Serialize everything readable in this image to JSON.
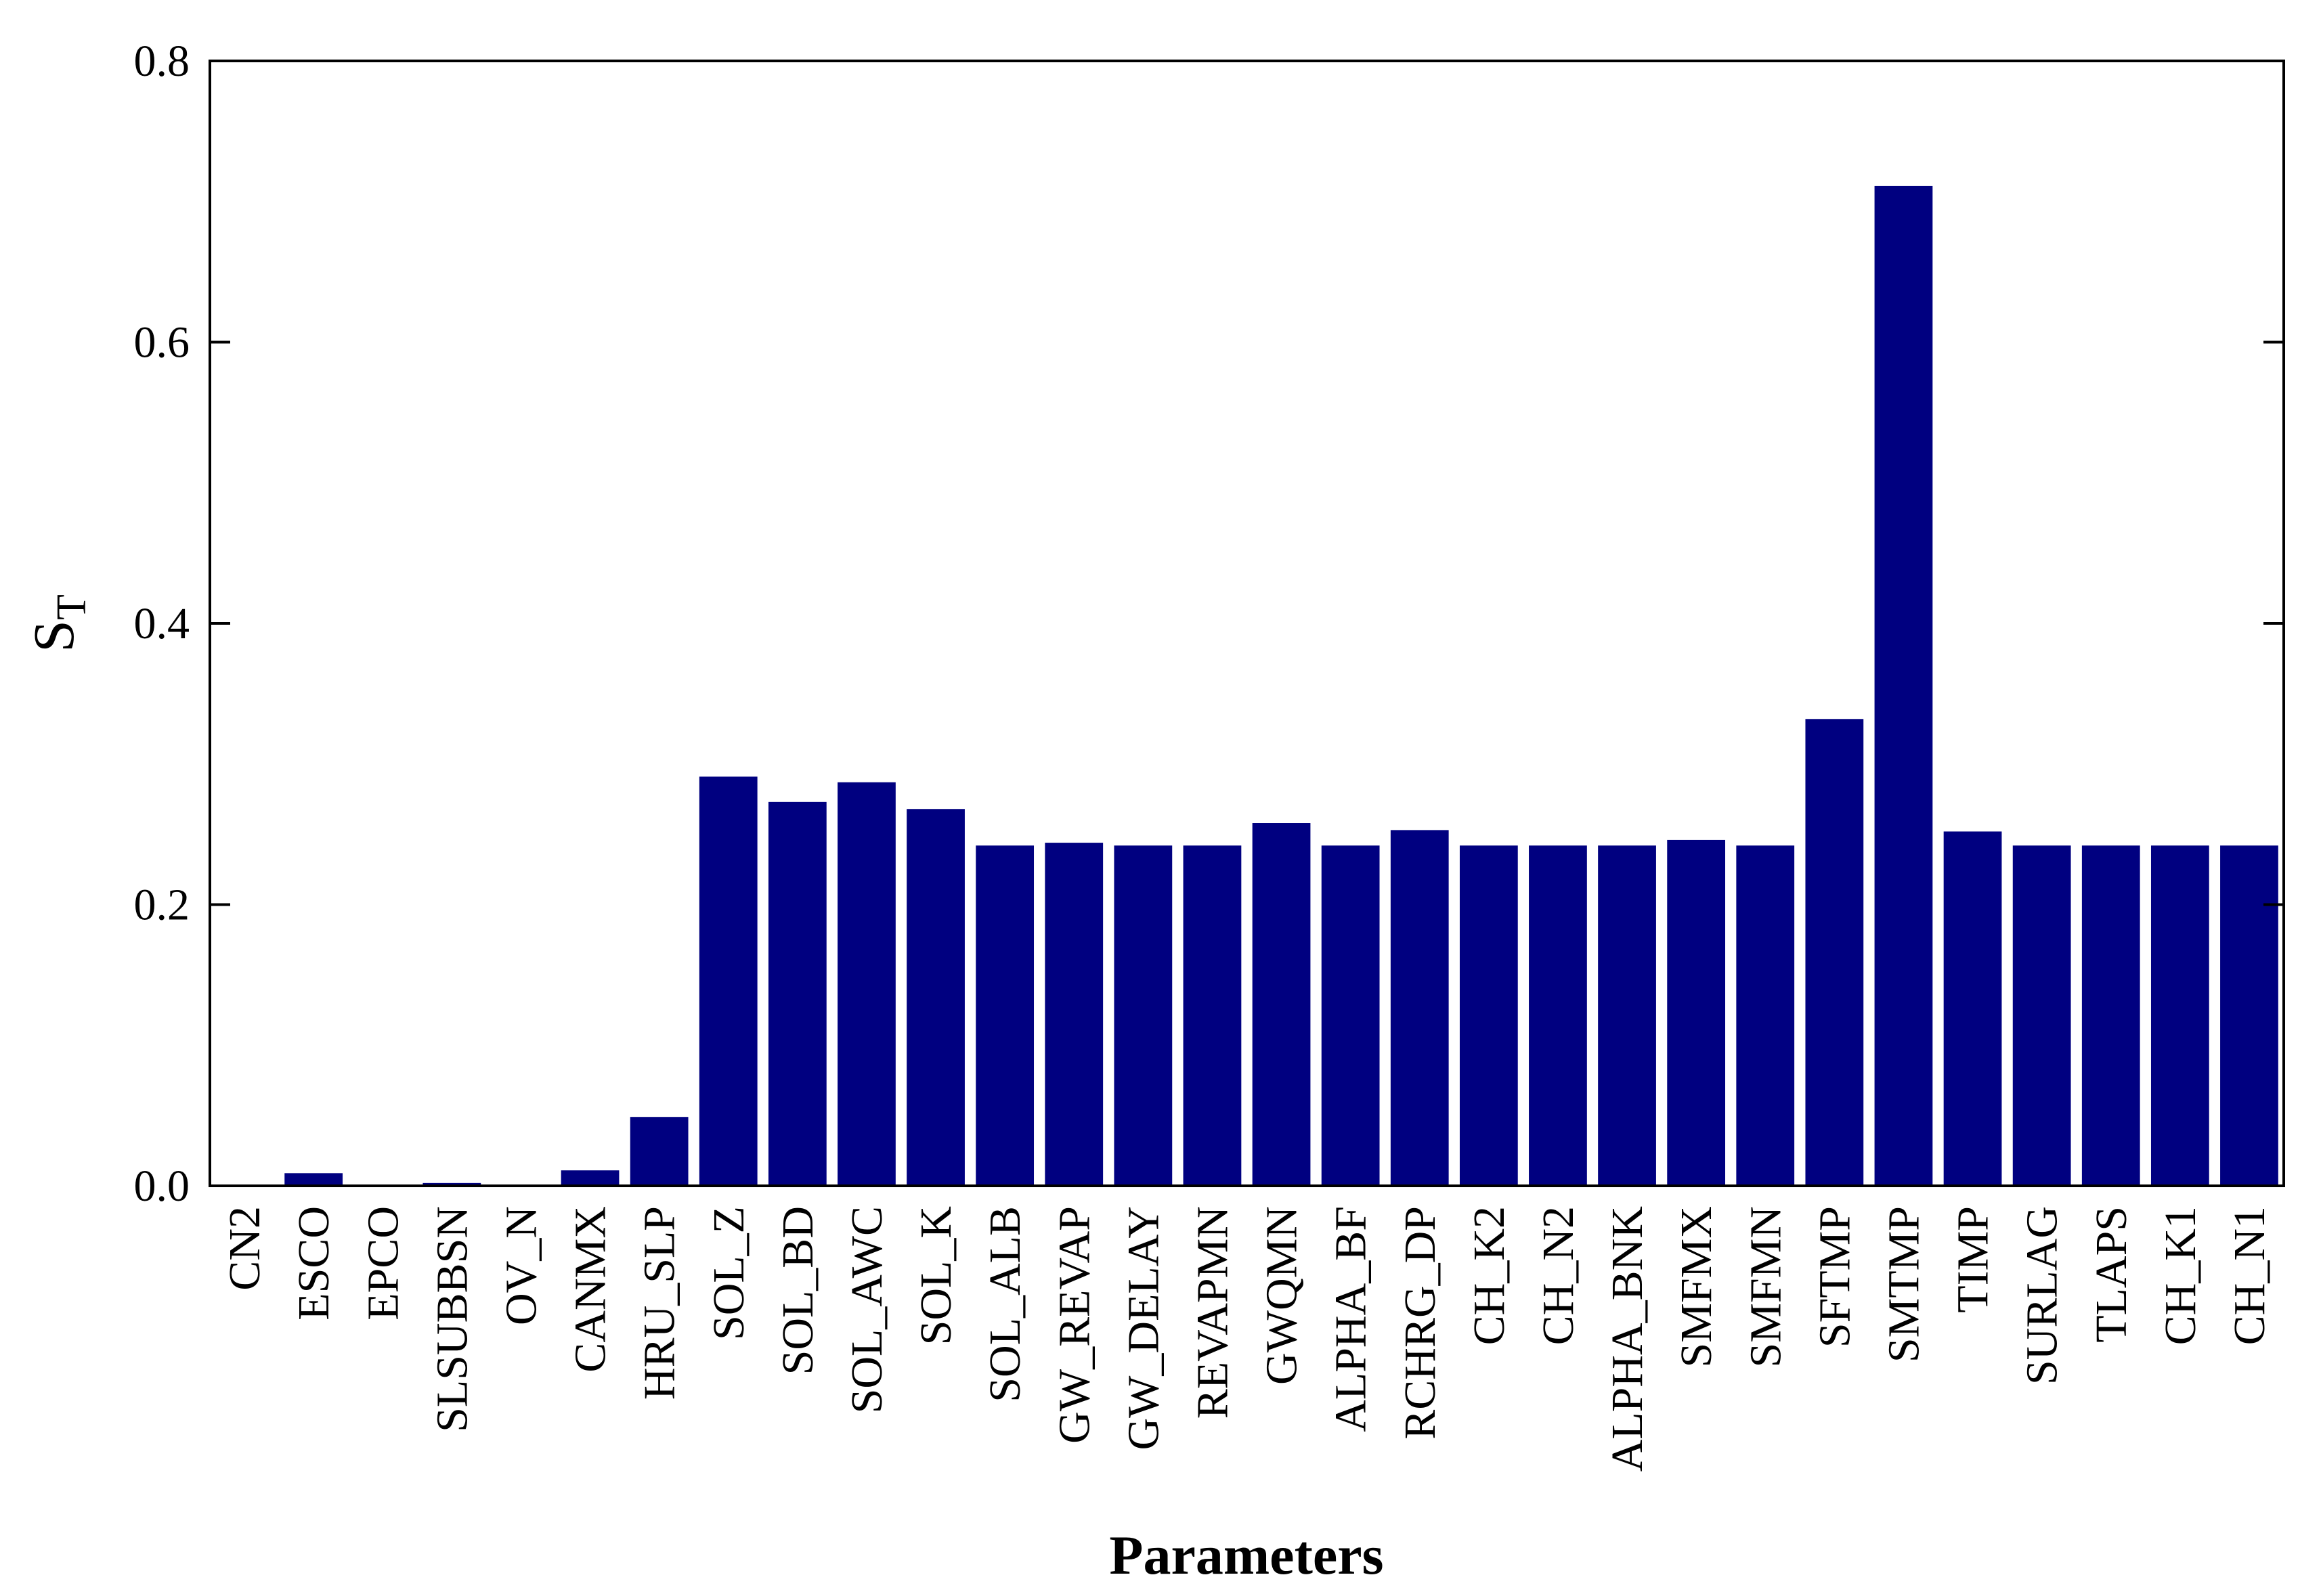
{
  "chart_data": {
    "type": "bar",
    "title": "",
    "xlabel": "Parameters",
    "ylabel_main": "S",
    "ylabel_sub": "T",
    "ylim": [
      0,
      0.8
    ],
    "yticks": [
      "0.0",
      "0.2",
      "0.4",
      "0.6",
      "0.8"
    ],
    "grid": false,
    "bar_color": "#000080",
    "categories": [
      "CN2",
      "ESCO",
      "EPCO",
      "SLSUBBSN",
      "OV_N",
      "CANMX",
      "HRU_SLP",
      "SOL_Z",
      "SOL_BD",
      "SOL_AWC",
      "SOL_K",
      "SOL_ALB",
      "GW_REVAP",
      "GW_DELAY",
      "REVAPMN",
      "GWQMN",
      "ALPHA_BF",
      "RCHRG_DP",
      "CH_K2",
      "CH_N2",
      "ALPHA_BNK",
      "SMFMX",
      "SMFMN",
      "SFTMP",
      "SMTMP",
      "TIMP",
      "SURLAG",
      "TLAPS",
      "CH_K1",
      "CH_N1"
    ],
    "values": [
      0.0,
      0.009,
      0.0,
      0.002,
      0.0,
      0.011,
      0.049,
      0.291,
      0.273,
      0.287,
      0.268,
      0.242,
      0.244,
      0.242,
      0.242,
      0.258,
      0.242,
      0.253,
      0.242,
      0.242,
      0.242,
      0.246,
      0.242,
      0.332,
      0.711,
      0.252,
      0.242,
      0.242,
      0.242,
      0.242
    ]
  }
}
